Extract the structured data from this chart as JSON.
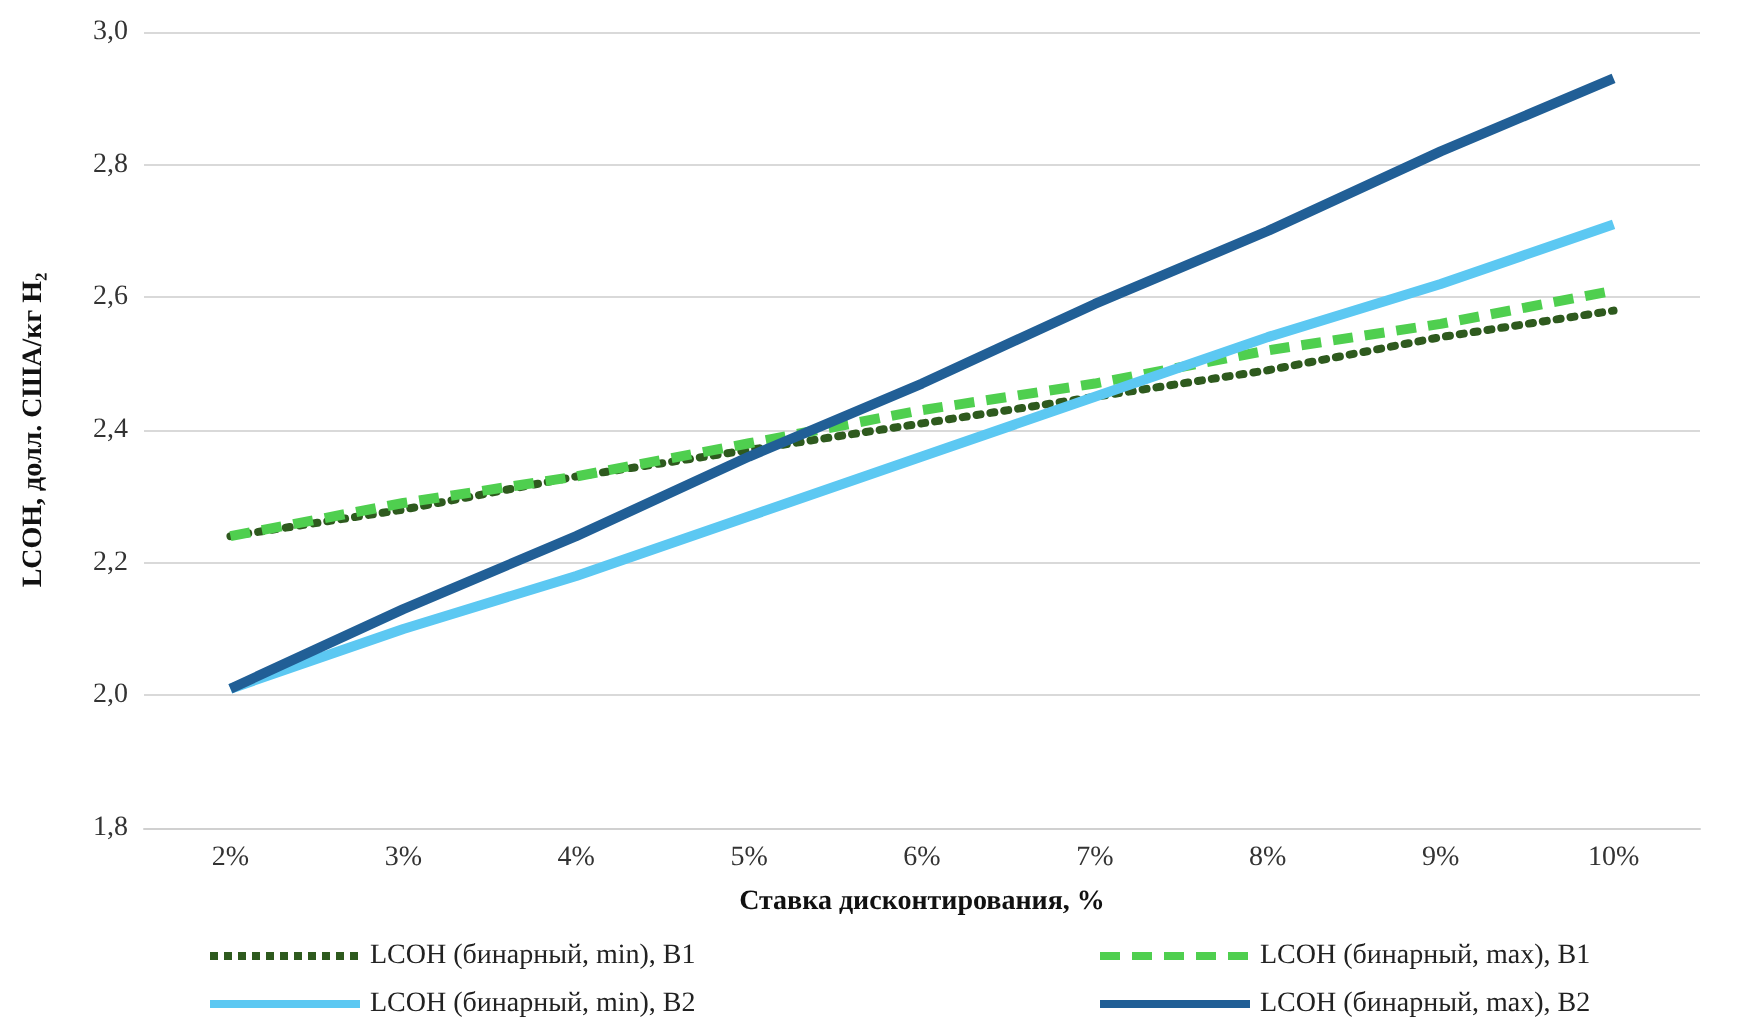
{
  "chart_data": {
    "type": "line",
    "xlabel": "Ставка дисконтирования, %",
    "ylabel": "LCOH, долл. США/кг H₂",
    "categories": [
      "2%",
      "3%",
      "4%",
      "5%",
      "6%",
      "7%",
      "8%",
      "9%",
      "10%"
    ],
    "series": [
      {
        "name": "LCOH (бинарный, min), B1",
        "color": "#2e5a1e",
        "line_style": "dotted",
        "values": [
          2.24,
          2.28,
          2.33,
          2.37,
          2.41,
          2.45,
          2.49,
          2.54,
          2.58
        ]
      },
      {
        "name": "LCOH (бинарный, max), B1",
        "color": "#4fcf4f",
        "line_style": "dashed",
        "values": [
          2.24,
          2.29,
          2.33,
          2.38,
          2.43,
          2.47,
          2.52,
          2.56,
          2.61
        ]
      },
      {
        "name": "LCOH (бинарный, min), B2",
        "color": "#5cc8f2",
        "line_style": "solid",
        "values": [
          2.01,
          2.1,
          2.18,
          2.27,
          2.36,
          2.45,
          2.54,
          2.62,
          2.71
        ]
      },
      {
        "name": "LCOH (бинарный, max), B2",
        "color": "#215f96",
        "line_style": "solid",
        "values": [
          2.01,
          2.13,
          2.24,
          2.36,
          2.47,
          2.59,
          2.7,
          2.82,
          2.93
        ]
      }
    ],
    "ylim": [
      1.8,
      3.0
    ],
    "yticks": [
      {
        "value": 1.8,
        "label": "1,8"
      },
      {
        "value": 2.0,
        "label": "2,0"
      },
      {
        "value": 2.2,
        "label": "2,2"
      },
      {
        "value": 2.4,
        "label": "2,4"
      },
      {
        "value": 2.6,
        "label": "2,6"
      },
      {
        "value": 2.8,
        "label": "2,8"
      },
      {
        "value": 3.0,
        "label": "3,0"
      }
    ],
    "grid": "y",
    "legend": "bottom",
    "marker": "none"
  }
}
